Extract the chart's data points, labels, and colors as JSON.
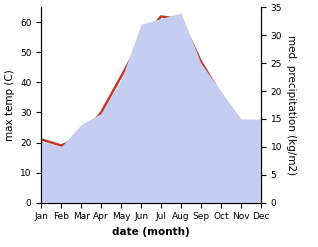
{
  "months": [
    "Jan",
    "Feb",
    "Mar",
    "Apr",
    "May",
    "Jun",
    "Jul",
    "Aug",
    "Sep",
    "Oct",
    "Nov",
    "Dec"
  ],
  "max_temp": [
    21,
    19,
    22,
    30,
    42,
    54,
    62,
    61,
    47,
    36,
    27,
    26
  ],
  "precipitation": [
    11,
    10,
    14,
    16,
    22,
    32,
    33,
    34,
    25,
    20,
    15,
    15
  ],
  "temp_color": "#c0392b",
  "precip_fill_color": "#c5cef0",
  "ylim_temp": [
    0,
    65
  ],
  "ylim_precip": [
    0,
    35
  ],
  "yticks_temp": [
    0,
    10,
    20,
    30,
    40,
    50,
    60
  ],
  "yticks_precip": [
    0,
    5,
    10,
    15,
    20,
    25,
    30,
    35
  ],
  "ylabel_left": "max temp (C)",
  "ylabel_right": "med. precipitation (kg/m2)",
  "xlabel": "date (month)",
  "temp_linewidth": 1.8,
  "label_fontsize": 7.5,
  "tick_fontsize": 6.5
}
